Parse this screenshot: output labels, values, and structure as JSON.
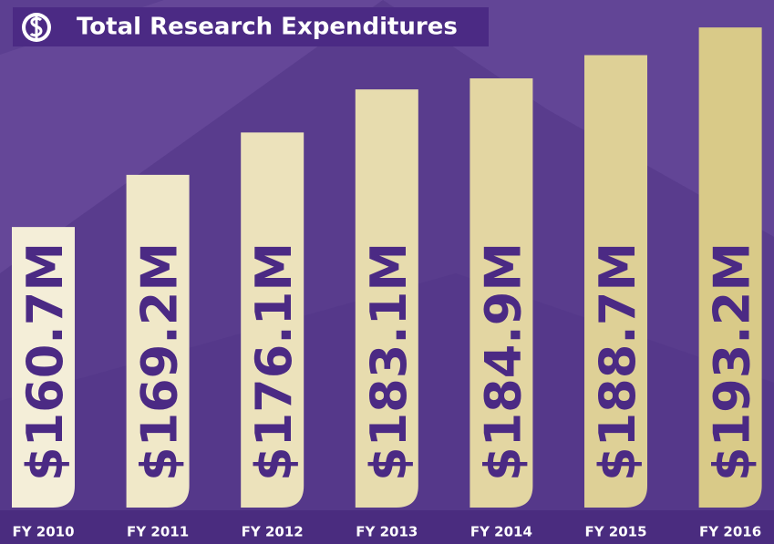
{
  "chart_data": {
    "type": "bar",
    "title": "Total Research Expenditures",
    "categories": [
      "FY 2010",
      "FY 2011",
      "FY 2012",
      "FY 2013",
      "FY 2014",
      "FY 2015",
      "FY 2016"
    ],
    "values": [
      160.7,
      169.2,
      176.1,
      183.1,
      184.9,
      188.7,
      193.2
    ],
    "value_labels": [
      "$160.7M",
      "$169.2M",
      "$176.1M",
      "$183.1M",
      "$184.9M",
      "$188.7M",
      "$193.2M"
    ],
    "colors": [
      "#f4eed8",
      "#f0e8c8",
      "#ece2bb",
      "#e7dcae",
      "#e3d6a2",
      "#ded096",
      "#d9ca88"
    ],
    "ylim": [
      115,
      195
    ]
  }
}
